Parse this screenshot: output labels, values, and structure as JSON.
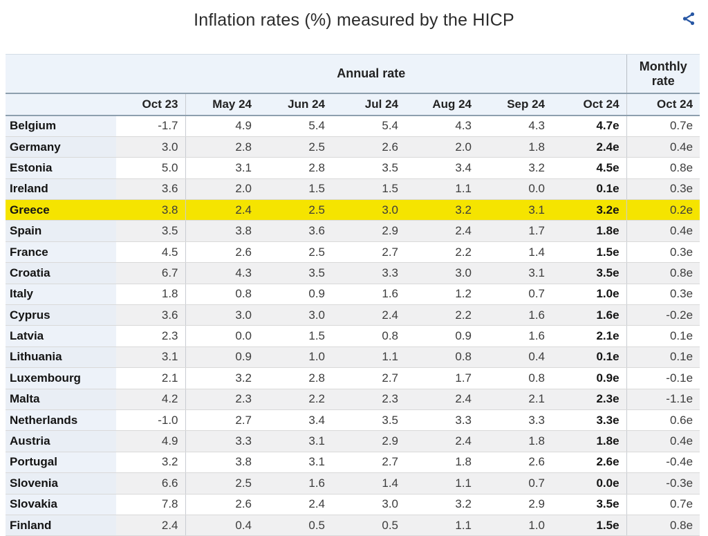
{
  "header": {
    "title": "Inflation rates (%) measured by the HICP"
  },
  "colors": {
    "highlight_yellow": "#f5e400",
    "header_blue": "#edf3fa",
    "share_icon_blue": "#2857a4",
    "header_border": "#8d9fae"
  },
  "chart_data": {
    "type": "table",
    "title": "Inflation rates (%) measured by the HICP",
    "group_headers": {
      "annual": "Annual rate",
      "monthly": "Monthly rate"
    },
    "annual_columns": [
      "Oct 23",
      "May 24",
      "Jun 24",
      "Jul 24",
      "Aug 24",
      "Sep 24",
      "Oct 24"
    ],
    "monthly_column": "Oct 24",
    "highlighted_country": "Greece",
    "rows": [
      {
        "country": "Belgium",
        "annual": [
          "-1.7",
          "4.9",
          "5.4",
          "5.4",
          "4.3",
          "4.3",
          "4.7e"
        ],
        "monthly": "0.7e",
        "highlight": false
      },
      {
        "country": "Germany",
        "annual": [
          "3.0",
          "2.8",
          "2.5",
          "2.6",
          "2.0",
          "1.8",
          "2.4e"
        ],
        "monthly": "0.4e",
        "highlight": false
      },
      {
        "country": "Estonia",
        "annual": [
          "5.0",
          "3.1",
          "2.8",
          "3.5",
          "3.4",
          "3.2",
          "4.5e"
        ],
        "monthly": "0.8e",
        "highlight": false
      },
      {
        "country": "Ireland",
        "annual": [
          "3.6",
          "2.0",
          "1.5",
          "1.5",
          "1.1",
          "0.0",
          "0.1e"
        ],
        "monthly": "0.3e",
        "highlight": false
      },
      {
        "country": "Greece",
        "annual": [
          "3.8",
          "2.4",
          "2.5",
          "3.0",
          "3.2",
          "3.1",
          "3.2e"
        ],
        "monthly": "0.2e",
        "highlight": true
      },
      {
        "country": "Spain",
        "annual": [
          "3.5",
          "3.8",
          "3.6",
          "2.9",
          "2.4",
          "1.7",
          "1.8e"
        ],
        "monthly": "0.4e",
        "highlight": false
      },
      {
        "country": "France",
        "annual": [
          "4.5",
          "2.6",
          "2.5",
          "2.7",
          "2.2",
          "1.4",
          "1.5e"
        ],
        "monthly": "0.3e",
        "highlight": false
      },
      {
        "country": "Croatia",
        "annual": [
          "6.7",
          "4.3",
          "3.5",
          "3.3",
          "3.0",
          "3.1",
          "3.5e"
        ],
        "monthly": "0.8e",
        "highlight": false
      },
      {
        "country": "Italy",
        "annual": [
          "1.8",
          "0.8",
          "0.9",
          "1.6",
          "1.2",
          "0.7",
          "1.0e"
        ],
        "monthly": "0.3e",
        "highlight": false
      },
      {
        "country": "Cyprus",
        "annual": [
          "3.6",
          "3.0",
          "3.0",
          "2.4",
          "2.2",
          "1.6",
          "1.6e"
        ],
        "monthly": "-0.2e",
        "highlight": false
      },
      {
        "country": "Latvia",
        "annual": [
          "2.3",
          "0.0",
          "1.5",
          "0.8",
          "0.9",
          "1.6",
          "2.1e"
        ],
        "monthly": "0.1e",
        "highlight": false
      },
      {
        "country": "Lithuania",
        "annual": [
          "3.1",
          "0.9",
          "1.0",
          "1.1",
          "0.8",
          "0.4",
          "0.1e"
        ],
        "monthly": "0.1e",
        "highlight": false
      },
      {
        "country": "Luxembourg",
        "annual": [
          "2.1",
          "3.2",
          "2.8",
          "2.7",
          "1.7",
          "0.8",
          "0.9e"
        ],
        "monthly": "-0.1e",
        "highlight": false
      },
      {
        "country": "Malta",
        "annual": [
          "4.2",
          "2.3",
          "2.2",
          "2.3",
          "2.4",
          "2.1",
          "2.3e"
        ],
        "monthly": "-1.1e",
        "highlight": false
      },
      {
        "country": "Netherlands",
        "annual": [
          "-1.0",
          "2.7",
          "3.4",
          "3.5",
          "3.3",
          "3.3",
          "3.3e"
        ],
        "monthly": "0.6e",
        "highlight": false
      },
      {
        "country": "Austria",
        "annual": [
          "4.9",
          "3.3",
          "3.1",
          "2.9",
          "2.4",
          "1.8",
          "1.8e"
        ],
        "monthly": "0.4e",
        "highlight": false
      },
      {
        "country": "Portugal",
        "annual": [
          "3.2",
          "3.8",
          "3.1",
          "2.7",
          "1.8",
          "2.6",
          "2.6e"
        ],
        "monthly": "-0.4e",
        "highlight": false
      },
      {
        "country": "Slovenia",
        "annual": [
          "6.6",
          "2.5",
          "1.6",
          "1.4",
          "1.1",
          "0.7",
          "0.0e"
        ],
        "monthly": "-0.3e",
        "highlight": false
      },
      {
        "country": "Slovakia",
        "annual": [
          "7.8",
          "2.6",
          "2.4",
          "3.0",
          "3.2",
          "2.9",
          "3.5e"
        ],
        "monthly": "0.7e",
        "highlight": false
      },
      {
        "country": "Finland",
        "annual": [
          "2.4",
          "0.4",
          "0.5",
          "0.5",
          "1.1",
          "1.0",
          "1.5e"
        ],
        "monthly": "0.8e",
        "highlight": false
      }
    ]
  }
}
